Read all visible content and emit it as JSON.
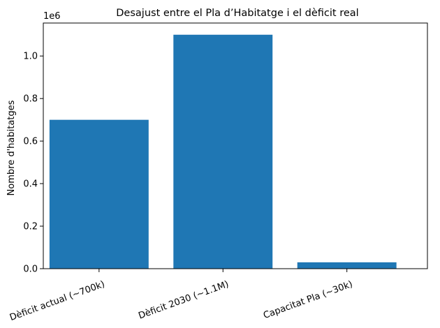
{
  "chart_data": {
    "type": "bar",
    "title": "Desajust entre el Pla d’Habitatge i el dèficit real",
    "ylabel": "Nombre d'habitatges",
    "xlabel": "",
    "offset_label": "1e6",
    "categories": [
      "Dèficit actual (~700k)",
      "Dèficit 2030 (~1.1M)",
      "Capacitat Pla (~30k)"
    ],
    "values": [
      700000,
      1100000,
      30000
    ],
    "ylim": [
      0,
      1155000
    ],
    "yticks": [
      0,
      200000,
      400000,
      600000,
      800000,
      1000000
    ],
    "ytick_labels": [
      "0.0",
      "0.2",
      "0.4",
      "0.6",
      "0.8",
      "1.0"
    ],
    "bar_color": "#1f77b4",
    "grid": false,
    "legend": "none"
  }
}
